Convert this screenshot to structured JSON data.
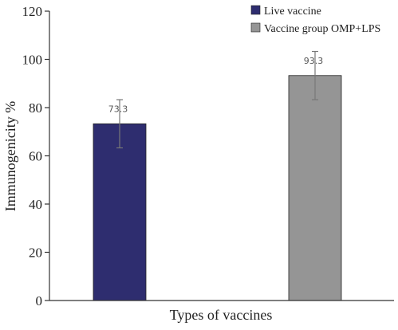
{
  "chart_data": {
    "type": "bar",
    "xlabel": "Types of vaccines",
    "ylabel": "Immunogenicity %",
    "ylim": [
      0,
      120
    ],
    "yticks": [
      0,
      20,
      40,
      60,
      80,
      100,
      120
    ],
    "grid": false,
    "legend_position": "top-right",
    "series": [
      {
        "name": "Live vaccine",
        "value": 73.3,
        "error": 10,
        "label": "73.3",
        "color": "#2e2d6f"
      },
      {
        "name": "Vaccine group OMP+LPS",
        "value": 93.3,
        "error": 10,
        "label": "93.3",
        "color": "#959595"
      }
    ]
  }
}
